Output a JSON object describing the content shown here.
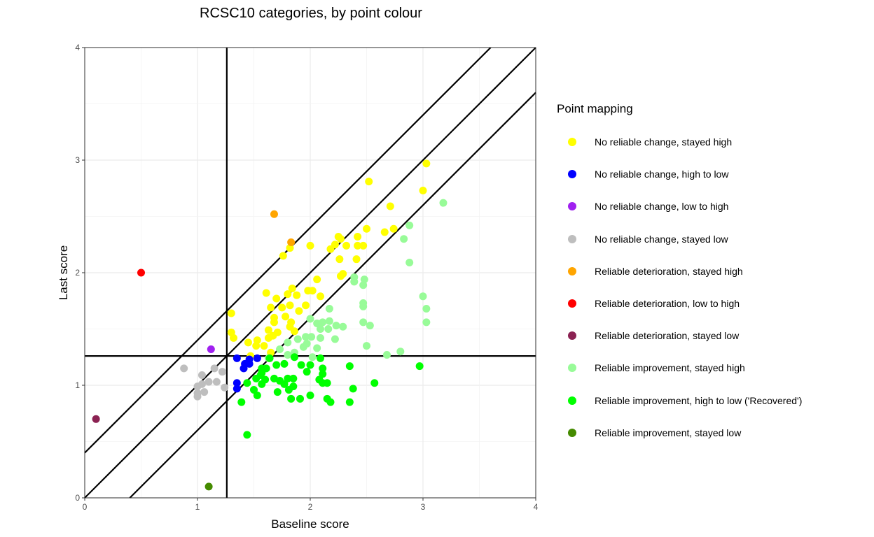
{
  "chart_data": {
    "type": "scatter",
    "title": "RCSC10 categories, by point colour",
    "xlabel": "Baseline score",
    "ylabel": "Last score",
    "xlim": [
      0,
      4
    ],
    "ylim": [
      0,
      4
    ],
    "xticks": [
      "0",
      "1",
      "2",
      "3",
      "4"
    ],
    "yticks": [
      "0",
      "1",
      "2",
      "3",
      "4"
    ],
    "grid": true,
    "legend_title": "Point mapping",
    "legend_position": "right",
    "reference_lines": {
      "vline": 1.26,
      "hline": 1.26,
      "diagonals_intercepts": [
        0.4,
        0,
        -0.4
      ],
      "diagonal_slope": 1
    },
    "series": [
      {
        "name": "No reliable change, stayed high",
        "color": "#FFFF00",
        "points": [
          [
            3.03,
            2.97
          ],
          [
            3.0,
            2.73
          ],
          [
            2.52,
            2.81
          ],
          [
            2.71,
            2.59
          ],
          [
            2.5,
            2.39
          ],
          [
            2.74,
            2.39
          ],
          [
            2.66,
            2.36
          ],
          [
            2.42,
            2.32
          ],
          [
            2.25,
            2.32
          ],
          [
            2.27,
            2.3
          ],
          [
            2.32,
            2.24
          ],
          [
            2.42,
            2.24
          ],
          [
            2.47,
            2.24
          ],
          [
            2.22,
            2.25
          ],
          [
            2.18,
            2.21
          ],
          [
            1.82,
            2.22
          ],
          [
            2.0,
            2.24
          ],
          [
            1.76,
            2.15
          ],
          [
            2.26,
            2.12
          ],
          [
            2.41,
            2.12
          ],
          [
            2.29,
            1.99
          ],
          [
            2.27,
            1.97
          ],
          [
            2.06,
            1.94
          ],
          [
            1.61,
            1.82
          ],
          [
            1.84,
            1.86
          ],
          [
            1.98,
            1.84
          ],
          [
            2.02,
            1.84
          ],
          [
            1.88,
            1.8
          ],
          [
            2.09,
            1.79
          ],
          [
            1.8,
            1.81
          ],
          [
            1.7,
            1.77
          ],
          [
            1.65,
            1.69
          ],
          [
            1.75,
            1.69
          ],
          [
            1.82,
            1.71
          ],
          [
            1.9,
            1.66
          ],
          [
            1.96,
            1.71
          ],
          [
            1.78,
            1.61
          ],
          [
            1.68,
            1.6
          ],
          [
            1.68,
            1.56
          ],
          [
            1.3,
            1.64
          ],
          [
            1.3,
            1.47
          ],
          [
            1.32,
            1.42
          ],
          [
            1.63,
            1.49
          ],
          [
            1.83,
            1.56
          ],
          [
            1.82,
            1.52
          ],
          [
            1.86,
            1.48
          ],
          [
            1.45,
            1.38
          ],
          [
            1.53,
            1.4
          ],
          [
            1.52,
            1.35
          ],
          [
            1.59,
            1.35
          ],
          [
            1.63,
            1.42
          ],
          [
            1.67,
            1.44
          ],
          [
            1.71,
            1.47
          ],
          [
            1.65,
            1.29
          ],
          [
            1.47,
            1.26
          ]
        ]
      },
      {
        "name": "No reliable change, high to low",
        "color": "#0000FF",
        "points": [
          [
            1.35,
            1.24
          ],
          [
            1.53,
            1.24
          ],
          [
            1.46,
            1.23
          ],
          [
            1.42,
            1.19
          ],
          [
            1.46,
            1.19
          ],
          [
            1.41,
            1.15
          ],
          [
            1.35,
            1.02
          ],
          [
            1.35,
            0.97
          ]
        ]
      },
      {
        "name": "No reliable change, low to high",
        "color": "#A020F0",
        "points": [
          [
            1.12,
            1.32
          ]
        ]
      },
      {
        "name": "No reliable change, stayed low",
        "color": "#BEBEBE",
        "points": [
          [
            0.88,
            1.15
          ],
          [
            1.04,
            1.09
          ],
          [
            1.15,
            1.15
          ],
          [
            1.22,
            1.12
          ],
          [
            1.04,
            1.01
          ],
          [
            1.1,
            1.03
          ],
          [
            1.17,
            1.03
          ],
          [
            1.24,
            0.98
          ],
          [
            1.0,
            0.99
          ],
          [
            1.0,
            0.9
          ],
          [
            1.06,
            0.94
          ],
          [
            1.0,
            0.93
          ]
        ]
      },
      {
        "name": "Reliable deterioration, stayed high",
        "color": "#FFA500",
        "points": [
          [
            1.68,
            2.52
          ],
          [
            1.83,
            2.27
          ]
        ]
      },
      {
        "name": "Reliable deterioration, low to high",
        "color": "#FF0000",
        "points": [
          [
            0.5,
            2.0
          ]
        ]
      },
      {
        "name": "Reliable deterioration, stayed low",
        "color": "#8B2252",
        "points": [
          [
            0.1,
            0.7
          ]
        ]
      },
      {
        "name": "Reliable improvement, stayed high",
        "color": "#98FB98",
        "points": [
          [
            3.18,
            2.62
          ],
          [
            2.88,
            2.42
          ],
          [
            2.83,
            2.3
          ],
          [
            2.88,
            2.09
          ],
          [
            2.39,
            1.96
          ],
          [
            2.48,
            1.94
          ],
          [
            2.47,
            1.89
          ],
          [
            2.39,
            1.92
          ],
          [
            2.47,
            1.73
          ],
          [
            2.47,
            1.7
          ],
          [
            3.0,
            1.79
          ],
          [
            3.03,
            1.68
          ],
          [
            3.03,
            1.56
          ],
          [
            2.47,
            1.56
          ],
          [
            2.53,
            1.53
          ],
          [
            2.17,
            1.68
          ],
          [
            2.0,
            1.59
          ],
          [
            2.06,
            1.55
          ],
          [
            2.11,
            1.56
          ],
          [
            2.09,
            1.5
          ],
          [
            2.17,
            1.57
          ],
          [
            2.23,
            1.53
          ],
          [
            2.29,
            1.52
          ],
          [
            2.16,
            1.5
          ],
          [
            2.01,
            1.43
          ],
          [
            1.96,
            1.43
          ],
          [
            1.89,
            1.41
          ],
          [
            2.22,
            1.41
          ],
          [
            2.06,
            1.33
          ],
          [
            2.09,
            1.42
          ],
          [
            1.8,
            1.38
          ],
          [
            1.73,
            1.32
          ],
          [
            1.94,
            1.34
          ],
          [
            2.5,
            1.35
          ],
          [
            2.8,
            1.3
          ],
          [
            2.68,
            1.27
          ],
          [
            1.8,
            1.27
          ],
          [
            1.86,
            1.29
          ],
          [
            2.02,
            1.25
          ],
          [
            1.63,
            1.24
          ],
          [
            1.97,
            1.37
          ]
        ]
      },
      {
        "name": "Reliable improvement, high to low ('Recovered')",
        "color": "#00FF00",
        "points": [
          [
            2.97,
            1.17
          ],
          [
            2.35,
            1.17
          ],
          [
            2.09,
            1.24
          ],
          [
            1.64,
            1.24
          ],
          [
            1.86,
            1.25
          ],
          [
            1.92,
            1.18
          ],
          [
            2.0,
            1.18
          ],
          [
            1.77,
            1.19
          ],
          [
            1.7,
            1.18
          ],
          [
            1.61,
            1.15
          ],
          [
            1.57,
            1.15
          ],
          [
            2.11,
            1.15
          ],
          [
            2.11,
            1.1
          ],
          [
            1.97,
            1.12
          ],
          [
            1.56,
            1.09
          ],
          [
            1.52,
            1.06
          ],
          [
            1.6,
            1.05
          ],
          [
            1.68,
            1.06
          ],
          [
            1.73,
            1.04
          ],
          [
            1.8,
            1.06
          ],
          [
            1.85,
            1.06
          ],
          [
            2.08,
            1.05
          ],
          [
            2.11,
            1.02
          ],
          [
            2.15,
            1.02
          ],
          [
            2.57,
            1.02
          ],
          [
            1.44,
            1.02
          ],
          [
            1.57,
            1.01
          ],
          [
            1.77,
            1.01
          ],
          [
            1.85,
            0.99
          ],
          [
            2.38,
            0.97
          ],
          [
            1.5,
            0.96
          ],
          [
            1.71,
            0.94
          ],
          [
            2.0,
            0.91
          ],
          [
            1.53,
            0.91
          ],
          [
            1.83,
            0.88
          ],
          [
            1.91,
            0.88
          ],
          [
            2.15,
            0.88
          ],
          [
            2.18,
            0.85
          ],
          [
            2.35,
            0.85
          ],
          [
            1.39,
            0.85
          ],
          [
            1.44,
            0.56
          ],
          [
            1.57,
            1.11
          ],
          [
            1.81,
            0.96
          ]
        ]
      },
      {
        "name": "Reliable improvement, stayed low",
        "color": "#458B00",
        "points": [
          [
            1.1,
            0.1
          ]
        ]
      }
    ]
  }
}
